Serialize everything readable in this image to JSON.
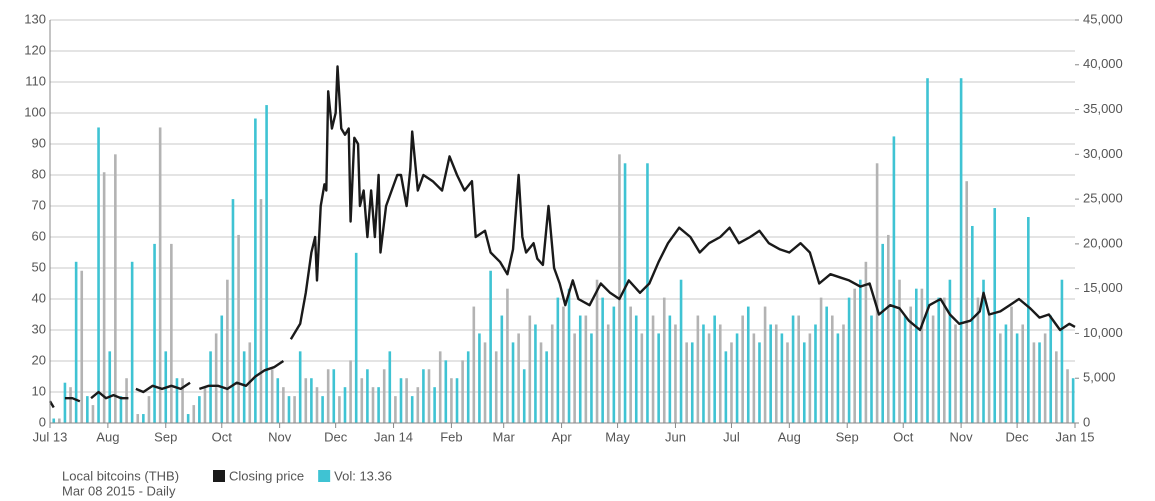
{
  "chart_data": {
    "type": "line",
    "title": "Local bitcoins (THB)",
    "subtitle": "Mar 08 2015 - Daily",
    "xlim": [
      0,
      549
    ],
    "xticks": [
      {
        "value": 0,
        "label": "Jul 13"
      },
      {
        "value": 31,
        "label": "Aug"
      },
      {
        "value": 62,
        "label": "Sep"
      },
      {
        "value": 92,
        "label": "Oct"
      },
      {
        "value": 123,
        "label": "Nov"
      },
      {
        "value": 153,
        "label": "Dec"
      },
      {
        "value": 184,
        "label": "Jan 14"
      },
      {
        "value": 215,
        "label": "Feb"
      },
      {
        "value": 243,
        "label": "Mar"
      },
      {
        "value": 274,
        "label": "Apr"
      },
      {
        "value": 304,
        "label": "May"
      },
      {
        "value": 335,
        "label": "Jun"
      },
      {
        "value": 365,
        "label": "Jul"
      },
      {
        "value": 396,
        "label": "Aug"
      },
      {
        "value": 427,
        "label": "Sep"
      },
      {
        "value": 457,
        "label": "Oct"
      },
      {
        "value": 488,
        "label": "Nov"
      },
      {
        "value": 518,
        "label": "Dec"
      },
      {
        "value": 549,
        "label": "Jan 15"
      }
    ],
    "ylim": [
      0,
      130
    ],
    "yticks": [
      0,
      10,
      20,
      30,
      40,
      50,
      60,
      70,
      80,
      90,
      100,
      110,
      120,
      130
    ],
    "y2lim": [
      0,
      45000
    ],
    "y2ticks": [
      0,
      {
        "value": 5000,
        "label": "5,000"
      },
      {
        "value": 10000,
        "label": "10,000"
      },
      {
        "value": 15000,
        "label": "15,000"
      },
      {
        "value": 20000,
        "label": "20,000"
      },
      {
        "value": 25000,
        "label": "25,000"
      },
      {
        "value": 30000,
        "label": "30,000"
      },
      {
        "value": 35000,
        "label": "35,000"
      },
      {
        "value": 40000,
        "label": "40,000"
      },
      {
        "value": 45000,
        "label": "45,000"
      }
    ],
    "grid": true,
    "series": [
      {
        "name": "Closing price",
        "type": "line",
        "color": "#1a1a1a",
        "x": [
          0,
          2,
          4,
          8,
          12,
          16,
          18,
          22,
          26,
          30,
          34,
          38,
          42,
          44,
          46,
          50,
          55,
          60,
          65,
          70,
          75,
          77,
          80,
          85,
          90,
          95,
          100,
          105,
          110,
          115,
          120,
          125,
          127,
          129,
          134,
          137,
          140,
          142,
          143,
          145,
          147,
          148,
          149,
          151,
          153,
          154,
          156,
          158,
          160,
          161,
          163,
          165,
          166,
          168,
          170,
          172,
          174,
          176,
          177,
          180,
          183,
          186,
          188,
          191,
          193,
          194,
          197,
          200,
          205,
          210,
          214,
          218,
          222,
          226,
          228,
          233,
          236,
          241,
          245,
          248,
          251,
          253,
          255,
          259,
          261,
          264,
          267,
          270,
          273,
          276,
          280,
          283,
          289,
          295,
          300,
          305,
          310,
          316,
          321,
          326,
          331,
          337,
          343,
          348,
          353,
          359,
          364,
          369,
          375,
          380,
          385,
          391,
          396,
          402,
          407,
          412,
          418,
          423,
          428,
          434,
          439,
          444,
          450,
          455,
          460,
          466,
          471,
          477,
          482,
          487,
          493,
          498,
          500,
          503,
          509,
          514,
          519,
          525,
          530,
          535,
          541,
          546,
          549
        ],
        "values": [
          7,
          5,
          null,
          8,
          8,
          7,
          null,
          8,
          10,
          8,
          9,
          8,
          8,
          null,
          11,
          10,
          12,
          11,
          12,
          11,
          13,
          null,
          11,
          12,
          12,
          11,
          13,
          12,
          15,
          17,
          18,
          20,
          null,
          27,
          32,
          42,
          55,
          60,
          46,
          70,
          77,
          75,
          107,
          95,
          100,
          115,
          95,
          93,
          95,
          65,
          92,
          90,
          70,
          75,
          60,
          75,
          60,
          80,
          55,
          70,
          75,
          80,
          80,
          70,
          82,
          94,
          75,
          80,
          78,
          75,
          86,
          80,
          75,
          78,
          60,
          62,
          55,
          52,
          48,
          56,
          80,
          60,
          55,
          58,
          53,
          51,
          70,
          50,
          45,
          38,
          46,
          40,
          38,
          45,
          42,
          40,
          46,
          42,
          45,
          52,
          58,
          63,
          60,
          55,
          58,
          60,
          63,
          58,
          60,
          62,
          58,
          56,
          55,
          58,
          55,
          45,
          48,
          47,
          46,
          44,
          45,
          35,
          38,
          37,
          33,
          30,
          38,
          40,
          35,
          32,
          33,
          36,
          42,
          35,
          36,
          38,
          40,
          37,
          34,
          35,
          30,
          32,
          31
        ]
      },
      {
        "name": "Vol: 13.36",
        "type": "bar",
        "axis": "y2",
        "color": "#3fc3d3",
        "x": [
          2,
          8,
          14,
          20,
          26,
          32,
          38,
          44,
          50,
          56,
          62,
          68,
          74,
          80,
          86,
          92,
          98,
          104,
          110,
          116,
          122,
          128,
          134,
          140,
          146,
          152,
          158,
          164,
          170,
          176,
          182,
          188,
          194,
          200,
          206,
          212,
          218,
          224,
          230,
          236,
          242,
          248,
          254,
          260,
          266,
          272,
          278,
          284,
          290,
          296,
          302,
          308,
          314,
          320,
          326,
          332,
          338,
          344,
          350,
          356,
          362,
          368,
          374,
          380,
          386,
          392,
          398,
          404,
          410,
          416,
          422,
          428,
          434,
          440,
          446,
          452,
          458,
          464,
          470,
          476,
          482,
          488,
          494,
          500,
          506,
          512,
          518,
          524,
          530,
          536,
          542,
          548
        ],
        "values": [
          500,
          4500,
          18000,
          3000,
          33000,
          8000,
          3000,
          18000,
          1000,
          20000,
          8000,
          5000,
          1000,
          3000,
          8000,
          12000,
          25000,
          8000,
          34000,
          35500,
          5000,
          3000,
          8000,
          5000,
          3000,
          6000,
          4000,
          19000,
          6000,
          4000,
          8000,
          5000,
          3000,
          6000,
          4000,
          7000,
          5000,
          8000,
          10000,
          17000,
          12000,
          9000,
          6000,
          11000,
          8000,
          14000,
          15000,
          12000,
          10000,
          14000,
          13000,
          29000,
          12000,
          29000,
          10000,
          12000,
          16000,
          9000,
          11000,
          12000,
          8000,
          10000,
          13000,
          9000,
          11000,
          10000,
          12000,
          9000,
          11000,
          13000,
          10000,
          14000,
          16000,
          12000,
          20000,
          32000,
          12000,
          15000,
          38500,
          14000,
          16000,
          38500,
          22000,
          16000,
          24000,
          11000,
          10000,
          23000,
          9000,
          12000,
          16000,
          5000
        ]
      },
      {
        "type": "bar",
        "axis": "y2",
        "color": "#b3b3b3",
        "x": [
          5,
          11,
          17,
          23,
          29,
          35,
          41,
          47,
          53,
          59,
          65,
          71,
          77,
          83,
          89,
          95,
          101,
          107,
          113,
          119,
          125,
          131,
          137,
          143,
          149,
          155,
          161,
          167,
          173,
          179,
          185,
          191,
          197,
          203,
          209,
          215,
          221,
          227,
          233,
          239,
          245,
          251,
          257,
          263,
          269,
          275,
          281,
          287,
          293,
          299,
          305,
          311,
          317,
          323,
          329,
          335,
          341,
          347,
          353,
          359,
          365,
          371,
          377,
          383,
          389,
          395,
          401,
          407,
          413,
          419,
          425,
          431,
          437,
          443,
          449,
          455,
          461,
          467,
          473,
          479,
          485,
          491,
          497,
          503,
          509,
          515,
          521,
          527,
          533,
          539,
          545
        ],
        "values": [
          500,
          4000,
          17000,
          2000,
          28000,
          30000,
          5000,
          1000,
          3000,
          33000,
          20000,
          5000,
          2000,
          4000,
          10000,
          16000,
          21000,
          9000,
          25000,
          6000,
          4000,
          3000,
          5000,
          4000,
          6000,
          3000,
          7000,
          5000,
          4000,
          6000,
          3000,
          5000,
          4000,
          6000,
          8000,
          5000,
          7000,
          13000,
          9000,
          8000,
          15000,
          10000,
          12000,
          9000,
          11000,
          13000,
          10000,
          12000,
          16000,
          11000,
          30000,
          13000,
          10000,
          12000,
          14000,
          11000,
          9000,
          12000,
          10000,
          11000,
          9000,
          12000,
          10000,
          13000,
          11000,
          9000,
          12000,
          10000,
          14000,
          12000,
          11000,
          15000,
          18000,
          29000,
          21000,
          16000,
          13000,
          15000,
          12000,
          14000,
          11000,
          27000,
          14000,
          12000,
          10000,
          13000,
          11000,
          9000,
          10000,
          8000,
          6000
        ]
      }
    ]
  }
}
